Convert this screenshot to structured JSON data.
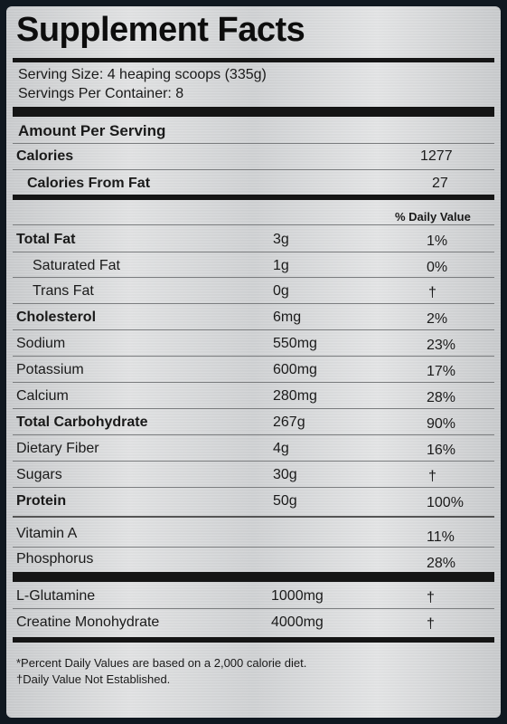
{
  "title": "Supplement Facts",
  "serving_size": "Serving Size: 4 heaping scoops (335g)",
  "servings_per_container": "Servings Per Container: 8",
  "amount_per_serving": "Amount Per Serving",
  "calories": {
    "label": "Calories",
    "value": "1277"
  },
  "calories_from_fat": {
    "label": "Calories From Fat",
    "value": "27"
  },
  "daily_value_header": "% Daily Value",
  "nutrients": [
    {
      "label": "Total Fat",
      "amount": "3g",
      "dv": "1%"
    },
    {
      "label": "Saturated Fat",
      "amount": "1g",
      "dv": "0%"
    },
    {
      "label": "Trans Fat",
      "amount": "0g",
      "dv": "†"
    },
    {
      "label": "Cholesterol",
      "amount": "6mg",
      "dv": "2%"
    },
    {
      "label": "Sodium",
      "amount": "550mg",
      "dv": "23%"
    },
    {
      "label": "Potassium",
      "amount": "600mg",
      "dv": "17%"
    },
    {
      "label": "Calcium",
      "amount": "280mg",
      "dv": "28%"
    },
    {
      "label": "Total Carbohydrate",
      "amount": "267g",
      "dv": "90%"
    },
    {
      "label": "Dietary Fiber",
      "amount": "4g",
      "dv": "16%"
    },
    {
      "label": "Sugars",
      "amount": "30g",
      "dv": "†"
    },
    {
      "label": "Protein",
      "amount": "50g",
      "dv": "100%"
    }
  ],
  "vitamins": [
    {
      "label": "Vitamin A",
      "dv": "11%"
    },
    {
      "label": "Phosphorus",
      "dv": "28%"
    }
  ],
  "supplements": [
    {
      "label": "L-Glutamine",
      "amount": "1000mg",
      "dv": "†"
    },
    {
      "label": "Creatine Monohydrate",
      "amount": "4000mg",
      "dv": "†"
    }
  ],
  "footnotes": [
    "*Percent Daily Values are based on a 2,000 calorie diet.",
    "†Daily Value Not Established."
  ]
}
